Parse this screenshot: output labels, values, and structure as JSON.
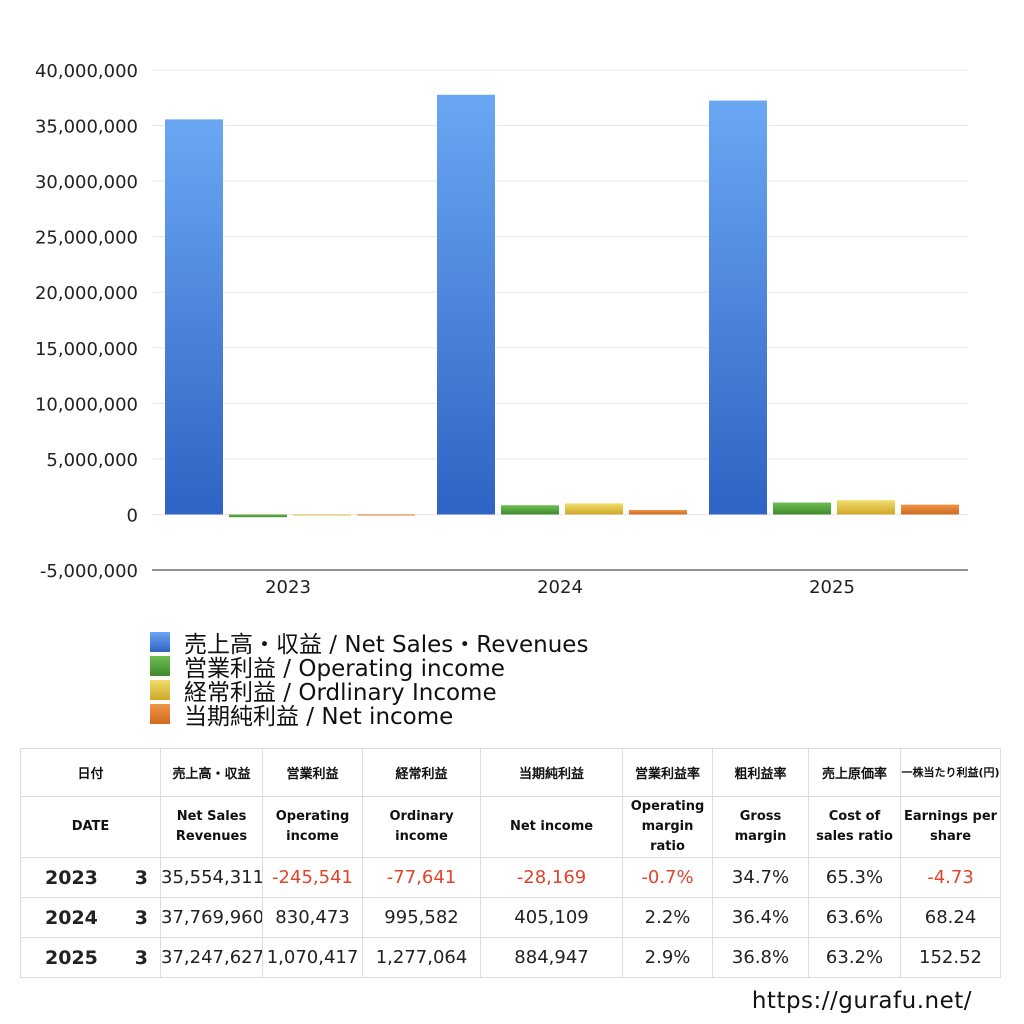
{
  "chart_data": {
    "type": "bar",
    "categories": [
      "2023",
      "2024",
      "2025"
    ],
    "ylim": [
      -5000000,
      40000000
    ],
    "yticks": [
      40000000,
      35000000,
      30000000,
      25000000,
      20000000,
      15000000,
      10000000,
      5000000,
      0,
      -5000000
    ],
    "ytick_labels": [
      "40,000,000",
      "35,000,000",
      "30,000,000",
      "25,000,000",
      "20,000,000",
      "15,000,000",
      "10,000,000",
      "5,000,000",
      "0",
      "-5,000,000"
    ],
    "grid": true,
    "legend_position": "bottom",
    "series": [
      {
        "name": "売上高・収益 / Net Sales・Revenues",
        "color": "#4a86e0",
        "gradient": [
          "#6aa7f3",
          "#2f63c4"
        ],
        "values": [
          35554311,
          37769960,
          37247627
        ]
      },
      {
        "name": "営業利益 / Operating income",
        "color": "#4f9a3a",
        "gradient": [
          "#6fbe52",
          "#3f8a2d"
        ],
        "values": [
          -245541,
          830473,
          1070417
        ]
      },
      {
        "name": "経常利益 / Ordlinary Income",
        "color": "#e3c23a",
        "gradient": [
          "#f1dc6a",
          "#cfa82a"
        ],
        "values": [
          -77641,
          995582,
          1277064
        ]
      },
      {
        "name": "当期純利益 / Net income",
        "color": "#e07a2e",
        "gradient": [
          "#f09548",
          "#d06a22"
        ],
        "values": [
          -28169,
          405109,
          884947
        ]
      }
    ]
  },
  "table": {
    "header_ja": [
      "日付",
      "売上高・収益",
      "営業利益",
      "経常利益",
      "当期純利益",
      "営業利益率",
      "粗利益率",
      "売上原価率",
      "一株当たり利益(円)"
    ],
    "header_en": [
      "DATE",
      "Net Sales Revenues",
      "Operating income",
      "Ordinary income",
      "Net income",
      "Operating margin ratio",
      "Gross margin",
      "Cost of sales ratio",
      "Earnings per share"
    ],
    "rows": [
      {
        "year": "2023",
        "month": "3",
        "sales": "35,554,311",
        "op": "-245,541",
        "ord": "-77,641",
        "net": "-28,169",
        "op_margin": "-0.7%",
        "gross": "34.7%",
        "cost": "65.3%",
        "eps": "-4.73"
      },
      {
        "year": "2024",
        "month": "3",
        "sales": "37,769,960",
        "op": "830,473",
        "ord": "995,582",
        "net": "405,109",
        "op_margin": "2.2%",
        "gross": "36.4%",
        "cost": "63.6%",
        "eps": "68.24"
      },
      {
        "year": "2025",
        "month": "3",
        "sales": "37,247,627",
        "op": "1,070,417",
        "ord": "1,277,064",
        "net": "884,947",
        "op_margin": "2.9%",
        "gross": "36.8%",
        "cost": "63.2%",
        "eps": "152.52"
      }
    ]
  },
  "source_url": "https://gurafu.net/"
}
